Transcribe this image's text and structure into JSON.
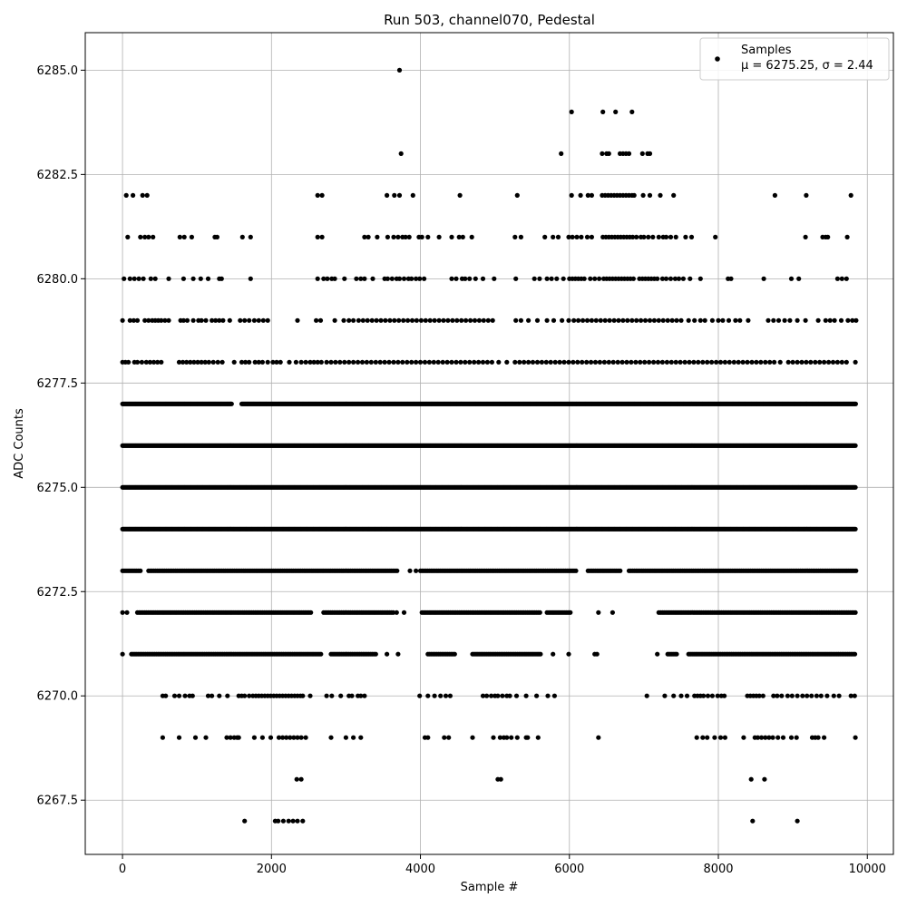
{
  "chart_data": {
    "type": "scatter",
    "title": "Run 503, channel070, Pedestal",
    "xlabel": "Sample #",
    "ylabel": "ADC Counts",
    "xlim": [
      -500,
      10350
    ],
    "ylim": [
      6266.2,
      6285.9
    ],
    "xticks": [
      0,
      2000,
      4000,
      6000,
      8000,
      10000
    ],
    "xtick_labels": [
      "0",
      "2000",
      "4000",
      "6000",
      "8000",
      "10000"
    ],
    "yticks": [
      6267.5,
      6270.0,
      6272.5,
      6275.0,
      6277.5,
      6280.0,
      6282.5,
      6285.0
    ],
    "ytick_labels": [
      "6267.5",
      "6270.0",
      "6272.5",
      "6275.0",
      "6277.5",
      "6280.0",
      "6282.5",
      "6285.0"
    ],
    "grid": true,
    "legend_position": "top-right",
    "series": [
      {
        "name": "Samples",
        "legend_stats": "μ = 6275.25, σ = 2.44",
        "color": "#000000",
        "marker": "dot",
        "points_by_level": [
          {
            "y": 6285,
            "x": [
              3720
            ]
          },
          {
            "y": 6284,
            "x": [
              6030,
              6450,
              6620,
              6840
            ]
          },
          {
            "y": 6283,
            "x": [
              3740,
              5890,
              6440,
              6500,
              6530,
              6680,
              6720,
              6760,
              6800,
              6980,
              7050,
              7080
            ]
          },
          {
            "y": 6282,
            "x": [
              50,
              140,
              270,
              330,
              2620,
              2680,
              3550,
              3650,
              3720,
              3900,
              4530,
              5300,
              6030,
              6150,
              6250,
              6300,
              6440,
              6480,
              6520,
              6560,
              6600,
              6640,
              6680,
              6720,
              6760,
              6800,
              6840,
              6870,
              6990,
              7080,
              7220,
              7400,
              8760,
              9180,
              9780
            ]
          },
          {
            "y": 6281,
            "x": [
              70,
              240,
              300,
              350,
              410,
              770,
              830,
              930,
              1240,
              1270,
              1610,
              1720,
              2620,
              2680,
              3250,
              3300,
              3420,
              3560,
              3640,
              3700,
              3760,
              3800,
              3850,
              3980,
              4020,
              4100,
              4250,
              4420,
              4520,
              4570,
              4690,
              5270,
              5350,
              5670,
              5780,
              5850,
              5990,
              6040,
              6100,
              6160,
              6240,
              6300,
              6450,
              6490,
              6530,
              6570,
              6610,
              6650,
              6690,
              6730,
              6770,
              6810,
              6850,
              6900,
              6960,
              7000,
              7060,
              7120,
              7200,
              7260,
              7300,
              7360,
              7430,
              7560,
              7640,
              7960,
              9170,
              9400,
              9440,
              9470,
              9730
            ]
          },
          {
            "y": 6280,
            "x": [
              20,
              100,
              160,
              220,
              280,
              380,
              440,
              620,
              820,
              950,
              1050,
              1150,
              1300,
              1330,
              1720,
              2620,
              2700,
              2750,
              2810,
              2850,
              2980,
              3140,
              3200,
              3250,
              3360,
              3520,
              3560,
              3620,
              3680,
              3720,
              3780,
              3840,
              3880,
              3940,
              3990,
              4050,
              4420,
              4480,
              4560,
              4600,
              4660,
              4740,
              4840,
              4990,
              5280,
              5530,
              5600,
              5700,
              5760,
              5830,
              5920,
              6000,
              6040,
              6080,
              6120,
              6160,
              6200,
              6280,
              6340,
              6400,
              6460,
              6500,
              6540,
              6580,
              6620,
              6660,
              6700,
              6740,
              6780,
              6820,
              6860,
              6940,
              6980,
              7020,
              7060,
              7100,
              7140,
              7180,
              7250,
              7300,
              7360,
              7420,
              7470,
              7530,
              7620,
              7760,
              8130,
              8170,
              8610,
              8980,
              9080,
              9600,
              9660,
              9720
            ]
          },
          {
            "y": 6279,
            "x": [
              0,
              100,
              150,
              200,
              300,
              350,
              400,
              440,
              480,
              520,
              570,
              620,
              780,
              820,
              870,
              950,
              1020,
              1060,
              1120,
              1200,
              1250,
              1300,
              1350,
              1440,
              1580,
              1640,
              1700,
              1770,
              1830,
              1890,
              1950,
              2350,
              2600,
              2660,
              2850,
              2970,
              3040,
              3100,
              3170,
              3230,
              3290,
              3350,
              3410,
              3470,
              3530,
              3590,
              3650,
              3710,
              3770,
              3830,
              3890,
              3950,
              4010,
              4070,
              4130,
              4190,
              4250,
              4310,
              4370,
              4430,
              4490,
              4550,
              4610,
              4670,
              4730,
              4790,
              4850,
              4910,
              4970,
              5280,
              5350,
              5450,
              5570,
              5700,
              5790,
              5900,
              5990,
              6060,
              6120,
              6180,
              6240,
              6300,
              6360,
              6420,
              6480,
              6540,
              6600,
              6660,
              6720,
              6780,
              6840,
              6900,
              6960,
              7020,
              7080,
              7140,
              7200,
              7260,
              7320,
              7380,
              7440,
              7500,
              7600,
              7680,
              7760,
              7820,
              7920,
              8000,
              8060,
              8140,
              8230,
              8290,
              8400,
              8670,
              8740,
              8810,
              8890,
              8960,
              9060,
              9170,
              9340,
              9440,
              9500,
              9560,
              9650,
              9740,
              9800,
              9850
            ]
          },
          {
            "y": 6278,
            "x": [
              0,
              40,
              80,
              160,
              200,
              260,
              320,
              370,
              420,
              470,
              520,
              760,
              810,
              860,
              910,
              960,
              1010,
              1060,
              1110,
              1160,
              1220,
              1280,
              1340,
              1500,
              1600,
              1650,
              1700,
              1780,
              1830,
              1880,
              1950,
              2020,
              2070,
              2120,
              2240,
              2330,
              2400,
              2460,
              2520,
              2570,
              2620,
              2670,
              2740,
              2800,
              2860,
              2920,
              2980,
              3040,
              3100,
              3160,
              3220,
              3280,
              3340,
              3400,
              3460,
              3520,
              3580,
              3640,
              3700,
              3760,
              3820,
              3880,
              3940,
              4000,
              4060,
              4120,
              4180,
              4240,
              4300,
              4360,
              4420,
              4480,
              4540,
              4600,
              4660,
              4720,
              4780,
              4840,
              4900,
              4960,
              5050,
              5160,
              5270,
              5330,
              5390,
              5450,
              5510,
              5570,
              5630,
              5690,
              5750,
              5810,
              5870,
              5930,
              5990,
              6050,
              6110,
              6170,
              6230,
              6290,
              6350,
              6410,
              6470,
              6530,
              6590,
              6650,
              6710,
              6770,
              6830,
              6890,
              6950,
              7010,
              7070,
              7130,
              7190,
              7250,
              7310,
              7370,
              7430,
              7490,
              7550,
              7610,
              7670,
              7730,
              7790,
              7850,
              7910,
              7970,
              8030,
              8090,
              8150,
              8210,
              8270,
              8330,
              8390,
              8450,
              8510,
              8570,
              8630,
              8690,
              8750,
              8830,
              8940,
              9000,
              9060,
              9120,
              9180,
              9240,
              9300,
              9360,
              9420,
              9480,
              9540,
              9600,
              9660,
              9720,
              9840
            ]
          }
        ],
        "dense_levels": [
          {
            "y": 6277,
            "ranges": [
              [
                0,
                1470
              ],
              [
                1600,
                9850
              ]
            ]
          },
          {
            "y": 6276,
            "ranges": [
              [
                0,
                9850
              ]
            ]
          },
          {
            "y": 6275,
            "ranges": [
              [
                0,
                9850
              ]
            ]
          },
          {
            "y": 6274,
            "ranges": [
              [
                0,
                9850
              ]
            ]
          }
        ],
        "sparse_levels": [
          {
            "y": 6273,
            "ranges": [
              [
                0,
                250
              ],
              [
                350,
                3700
              ],
              [
                4000,
                6100
              ],
              [
                6250,
                6700
              ],
              [
                6800,
                9850
              ]
            ],
            "extra": [
              3860,
              3940
            ]
          },
          {
            "y": 6272,
            "ranges": [
              [
                200,
                2550
              ],
              [
                2700,
                3640
              ],
              [
                4020,
                5620
              ],
              [
                5700,
                6020
              ],
              [
                7200,
                9850
              ]
            ],
            "extra": [
              0,
              60,
              3680,
              3780,
              6390,
              6580
            ]
          },
          {
            "y": 6271,
            "ranges": [
              [
                0,
                20
              ],
              [
                120,
                2680
              ],
              [
                2800,
                3400
              ],
              [
                4100,
                4460
              ],
              [
                4700,
                5620
              ],
              [
                7320,
                7460
              ],
              [
                7600,
                9850
              ]
            ],
            "extra": [
              3550,
              3700,
              5780,
              5990,
              6340,
              6370,
              7180
            ]
          },
          {
            "y": 6270,
            "x": [
              540,
              580,
              700,
              760,
              840,
              900,
              940,
              1150,
              1200,
              1300,
              1410,
              1560,
              1600,
              1640,
              1700,
              1750,
              1790,
              1830,
              1870,
              1910,
              1950,
              1990,
              2030,
              2070,
              2110,
              2150,
              2190,
              2230,
              2270,
              2310,
              2350,
              2390,
              2420,
              2520,
              2740,
              2810,
              2930,
              3040,
              3080,
              3160,
              3200,
              3250,
              3990,
              4100,
              4190,
              4270,
              4340,
              4400,
              4840,
              4890,
              4950,
              5000,
              5040,
              5100,
              5160,
              5200,
              5290,
              5420,
              5560,
              5710,
              5800,
              7040,
              7280,
              7400,
              7500,
              7580,
              7680,
              7720,
              7760,
              7800,
              7860,
              7920,
              7990,
              8040,
              8080,
              8390,
              8430,
              8470,
              8510,
              8550,
              8600,
              8740,
              8790,
              8850,
              8930,
              8990,
              9060,
              9130,
              9190,
              9250,
              9320,
              9380,
              9460,
              9550,
              9620,
              9780,
              9830
            ]
          },
          {
            "y": 6269,
            "x": [
              540,
              760,
              980,
              1120,
              1400,
              1450,
              1500,
              1540,
              1560,
              1770,
              1880,
              1990,
              2100,
              2150,
              2200,
              2250,
              2300,
              2350,
              2400,
              2460,
              2800,
              3000,
              3100,
              3200,
              4060,
              4100,
              4320,
              4380,
              4700,
              4980,
              5070,
              5120,
              5160,
              5220,
              5300,
              5420,
              5440,
              5580,
              6390,
              7710,
              7790,
              7850,
              7950,
              8030,
              8090,
              8340,
              8490,
              8530,
              8580,
              8630,
              8680,
              8730,
              8800,
              8870,
              8980,
              9050,
              9260,
              9300,
              9340,
              9420,
              9840
            ]
          },
          {
            "y": 6268,
            "x": [
              2340,
              2400,
              5040,
              5080,
              8440,
              8620
            ]
          },
          {
            "y": 6267,
            "x": [
              1640,
              2050,
              2090,
              2160,
              2230,
              2290,
              2350,
              2420,
              8460,
              9060
            ]
          }
        ]
      }
    ]
  }
}
